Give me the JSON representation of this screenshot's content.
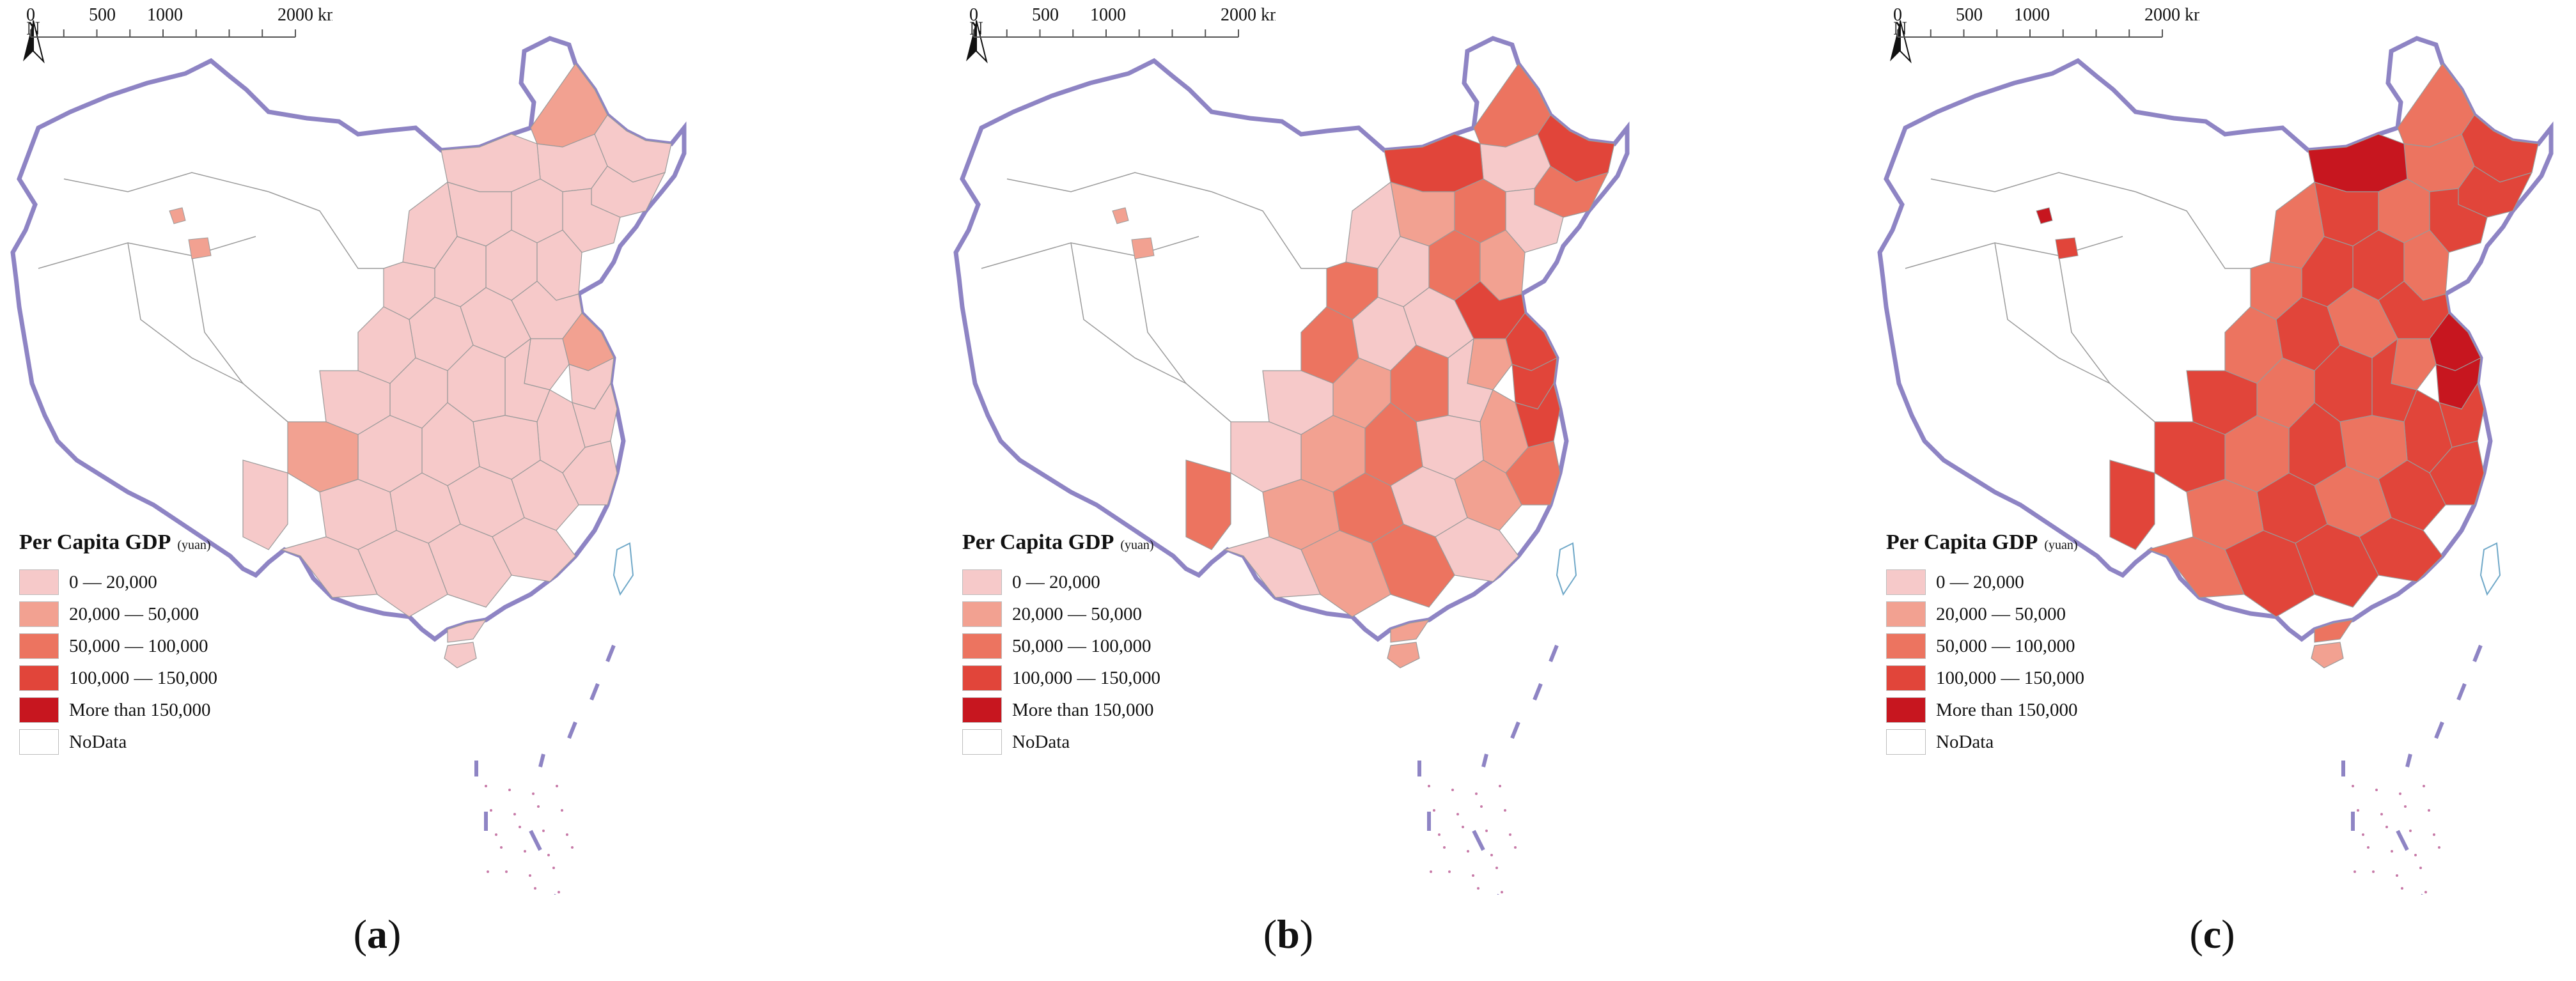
{
  "north_label": "N",
  "legend": {
    "title": "Per Capita GDP",
    "unit": "(yuan)",
    "classes": [
      {
        "label": "0 — 20,000",
        "color": "#f6c9c9"
      },
      {
        "label": "20,000 — 50,000",
        "color": "#f2a191"
      },
      {
        "label": "50,000 — 100,000",
        "color": "#ec7460"
      },
      {
        "label": "100,000 — 150,000",
        "color": "#e1453a"
      },
      {
        "label": "More than 150,000",
        "color": "#c7161f"
      },
      {
        "label": "NoData",
        "color": "#ffffff"
      }
    ]
  },
  "scale": {
    "ticks": [
      "0",
      "500",
      "1000",
      "2000 km"
    ]
  },
  "panels": [
    {
      "label": "a"
    },
    {
      "label": "b"
    },
    {
      "label": "c"
    }
  ],
  "colors": {
    "border": "#8e84c4",
    "region_outline": "#9a9a9a"
  }
}
